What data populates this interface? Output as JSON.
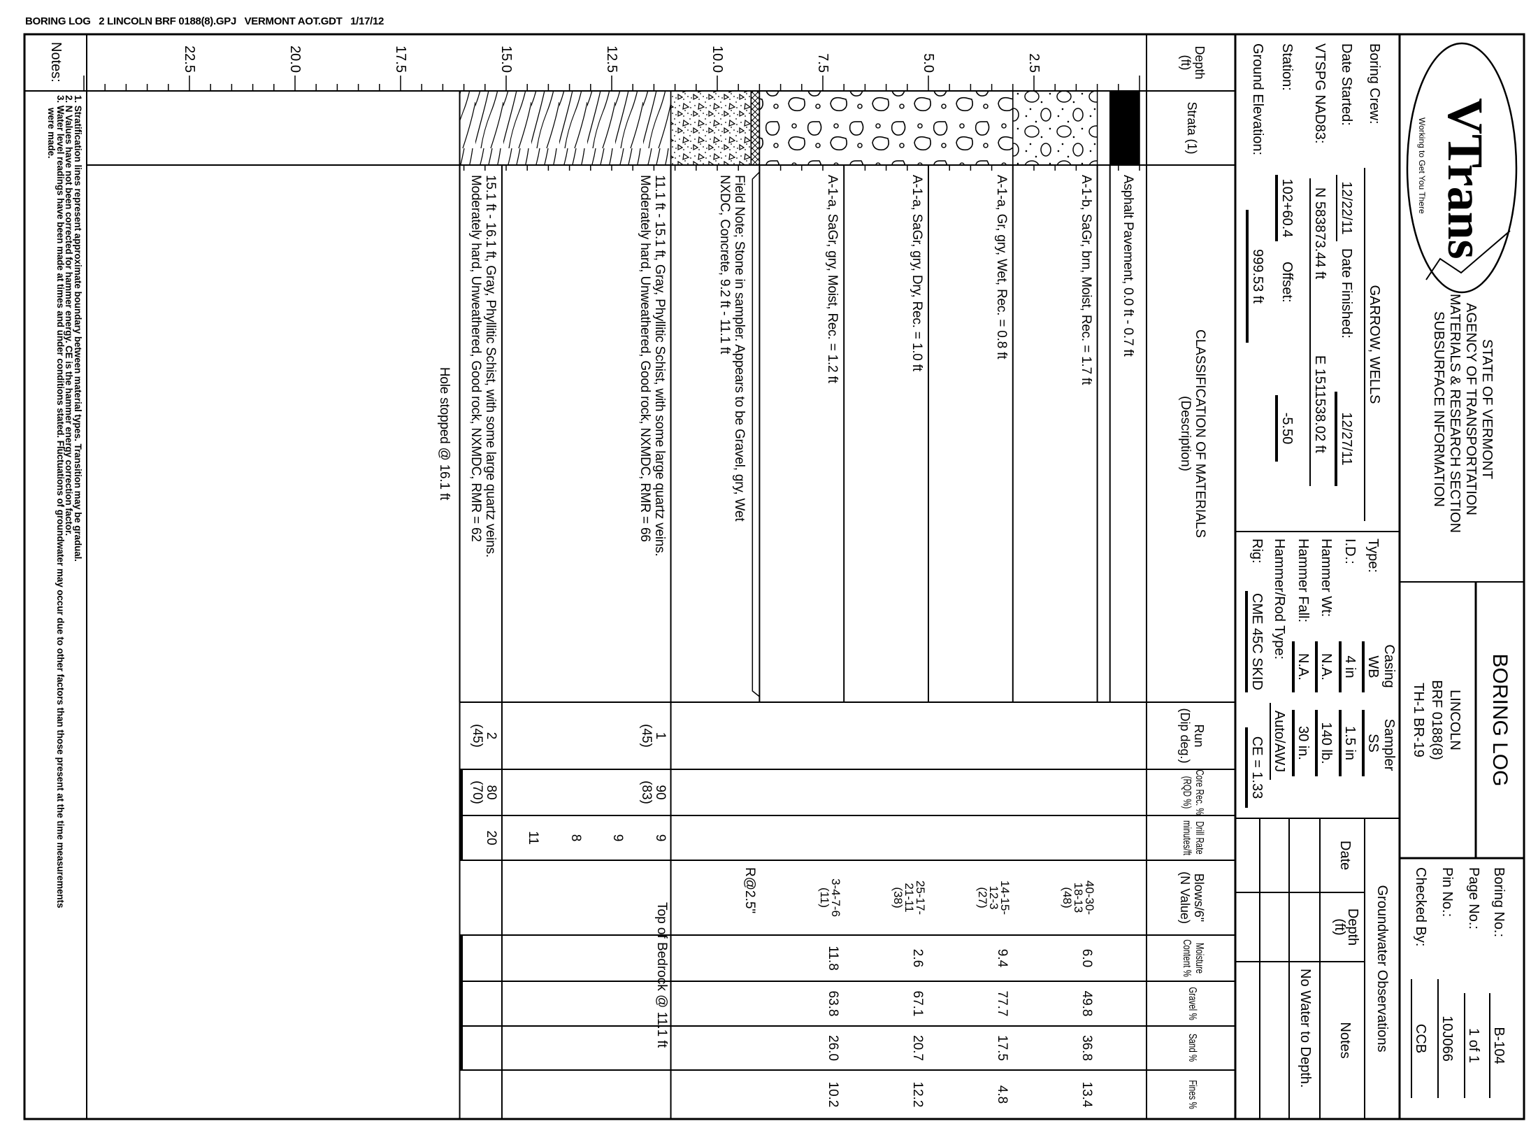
{
  "header_line": "BORING LOG   2 LINCOLN BRF 0188(8).GPJ   VERMONT AOT.GDT   1/17/12",
  "title_block": {
    "logo_text": "VTrans",
    "logo_tagline": "Working to Get You There",
    "agency": [
      "STATE OF VERMONT",
      "AGENCY OF TRANSPORTATION",
      "MATERIALS & RESEARCH SECTION",
      "SUBSURFACE INFORMATION"
    ],
    "doc_title": "BORING LOG",
    "project": [
      "LINCOLN",
      "BRF 0188(8)",
      "TH-1 BR-19"
    ],
    "boring_no_label": "Boring No.:",
    "boring_no": "B-104",
    "page_label": "Page No.:",
    "page": "1 of 1",
    "pin_label": "Pin No.:",
    "pin": "10J066",
    "checked_label": "Checked By:",
    "checked": "CCB"
  },
  "boring_info": {
    "crew_label": "Boring Crew:",
    "crew": "GARROW, WELLS",
    "started_label": "Date Started:",
    "started": "12/22/11",
    "finished_label": "Date Finished:",
    "finished": "12/27/11",
    "vtspg_label": "VTSPG NAD83:",
    "northing": "N 583873.44 ft",
    "easting": "E 1511538.02 ft",
    "station_label": "Station:",
    "station": "102+60.4",
    "offset_label": "Offset:",
    "offset": "-5.50",
    "elevation_label": "Ground Elevation:",
    "elevation": "999.53 ft"
  },
  "equipment": {
    "casing_header": "Casing",
    "sampler_header": "Sampler",
    "type_label": "Type:",
    "casing_type": "WB",
    "sampler_type": "SS",
    "id_label": "I.D.:",
    "casing_id": "4 in",
    "sampler_id": "1.5 in",
    "hammer_wt_label": "Hammer Wt:",
    "casing_hammer_wt": "N.A.",
    "sampler_hammer_wt": "140 lb.",
    "hammer_fall_label": "Hammer Fall:",
    "casing_hammer_fall": "N.A.",
    "sampler_hammer_fall": "30 in.",
    "hammer_rod_label": "Hammer/Rod Type:",
    "hammer_rod": "Auto/AWJ",
    "rig_label": "Rig:",
    "rig": "CME 45C SKID",
    "ce": "CE = 1.33"
  },
  "groundwater": {
    "title": "Groundwater Observations",
    "date_header": "Date",
    "depth_header": "Depth",
    "depth_unit": "(ft)",
    "notes_header": "Notes",
    "note": "No Water to Depth."
  },
  "columns": {
    "depth": [
      "Depth",
      "(ft)"
    ],
    "strata": [
      "Strata (1)"
    ],
    "description": [
      "CLASSIFICATION OF MATERIALS",
      "(Description)"
    ],
    "run": [
      "Run",
      "(Dip deg.)"
    ],
    "core": [
      "Core Rec. %",
      "(RQD %)"
    ],
    "drill": [
      "Drill Rate",
      "minutes/ft"
    ],
    "blows": [
      "Blows/6\"",
      "(N Value)"
    ],
    "moisture": [
      "Moisture",
      "Content %"
    ],
    "gravel": [
      "Gravel %"
    ],
    "sand": [
      "Sand %"
    ],
    "fines": [
      "Fines %"
    ]
  },
  "depth_scale": {
    "unit": "ft",
    "min": 0,
    "max": 25,
    "minor_step": 0.5,
    "labels": [
      "2.5",
      "5.0",
      "7.5",
      "10.0",
      "12.5",
      "15.0",
      "17.5",
      "20.0",
      "22.5"
    ]
  },
  "strata": [
    {
      "top": 0.0,
      "bottom": 0.7,
      "pattern": "asphalt"
    },
    {
      "top": 1.0,
      "bottom": 3.0,
      "pattern": "sandy-gravel"
    },
    {
      "top": 3.0,
      "bottom": 9.0,
      "pattern": "gravel-cobbles"
    },
    {
      "top": 9.0,
      "bottom": 9.2,
      "pattern": "crosshatch"
    },
    {
      "top": 9.2,
      "bottom": 11.1,
      "pattern": "concrete"
    },
    {
      "top": 11.1,
      "bottom": 16.1,
      "pattern": "phyllitic-schist"
    }
  ],
  "boundaries": [
    0.7,
    1.0,
    3.0,
    5.0,
    7.0,
    9.0,
    11.1,
    15.1,
    16.1
  ],
  "descriptions": [
    {
      "depth": 0.0,
      "lines": [
        "Asphalt Pavement, 0.0 ft - 0.7 ft"
      ]
    },
    {
      "depth": 1.0,
      "lines": [
        "A-1-b, SaGr, brn, Moist, Rec. = 1.7 ft"
      ]
    },
    {
      "depth": 3.0,
      "lines": [
        "A-1-a, Gr, gry, Wet, Rec. = 0.8 ft"
      ]
    },
    {
      "depth": 5.0,
      "lines": [
        "A-1-a, SaGr, gry, Dry, Rec. = 1.0 ft"
      ]
    },
    {
      "depth": 7.0,
      "lines": [
        "A-1-a, SaGr, gry, Moist, Rec. = 1.2 ft"
      ]
    },
    {
      "depth": 9.2,
      "lines": [
        "Field Note; Stone in sampler. Appears to be Gravel, gry, Wet",
        "NXDC, Concrete, 9.2 ft - 11.1 ft"
      ]
    },
    {
      "depth": 11.1,
      "lines": [
        "11.1 ft - 15.1 ft, Gray, Phyllitic Schist, with some large quartz veins.",
        "Moderately hard, Unweathered, Good rock, NXMDC, RMR = 66"
      ]
    },
    {
      "depth": 15.1,
      "lines": [
        "15.1 ft - 16.1 ft, Gray, Phyllitic Schist, with some large quartz veins.",
        "Moderately hard, Unweathered, Good rock, NXMDC, RMR = 62"
      ]
    }
  ],
  "hole_stopped": {
    "depth": 16.1,
    "text": "Hole stopped @ 16.1 ft"
  },
  "samples": [
    {
      "depth": 1.0,
      "blows": [
        "40-30-",
        "18-13",
        "(48)"
      ],
      "moisture": "6.0",
      "gravel": "49.8",
      "sand": "36.8",
      "fines": "13.4"
    },
    {
      "depth": 3.0,
      "blows": [
        "14-15-",
        "12-3",
        "(27)"
      ],
      "moisture": "9.4",
      "gravel": "77.7",
      "sand": "17.5",
      "fines": "4.8"
    },
    {
      "depth": 5.0,
      "blows": [
        "25-17-",
        "21-11",
        "(38)"
      ],
      "moisture": "2.6",
      "gravel": "67.1",
      "sand": "20.7",
      "fines": "12.2"
    },
    {
      "depth": 7.0,
      "blows": [
        "3-4-7-6",
        "(11)"
      ],
      "moisture": "11.8",
      "gravel": "63.8",
      "sand": "26.0",
      "fines": "10.2"
    }
  ],
  "refusal": {
    "depth": 9.0,
    "text": "R@2.5\""
  },
  "bedrock_note": {
    "depth": 11.1,
    "text": "Top of Bedrock @ 11.1 ft"
  },
  "core_runs": [
    {
      "top": 11.1,
      "bottom": 15.1,
      "run": "1",
      "dip": "(45)",
      "rec": "90",
      "rqd": "(83)"
    },
    {
      "top": 15.1,
      "bottom": 16.1,
      "run": "2",
      "dip": "(45)",
      "rec": "80",
      "rqd": "(70)"
    }
  ],
  "drill_rate": [
    {
      "depth": 11.1,
      "value": "9"
    },
    {
      "depth": 12.1,
      "value": "9"
    },
    {
      "depth": 13.1,
      "value": "8"
    },
    {
      "depth": 14.1,
      "value": "11"
    },
    {
      "depth": 15.1,
      "value": "20"
    }
  ],
  "notes": {
    "label": "Notes:",
    "items": [
      "1. Stratification lines represent approximate boundary between material types. Transition may be gradual.",
      "2. N Values have not been corrected for hammer energy. CE is the hammer energy correction factor.",
      "3. Water level readings have been made at times and under conditions stated. Fluctuations of groundwater may occur due to other factors than those present at the time measurements",
      "were made."
    ]
  },
  "colors": {
    "ink": "#000000",
    "paper": "#ffffff"
  }
}
